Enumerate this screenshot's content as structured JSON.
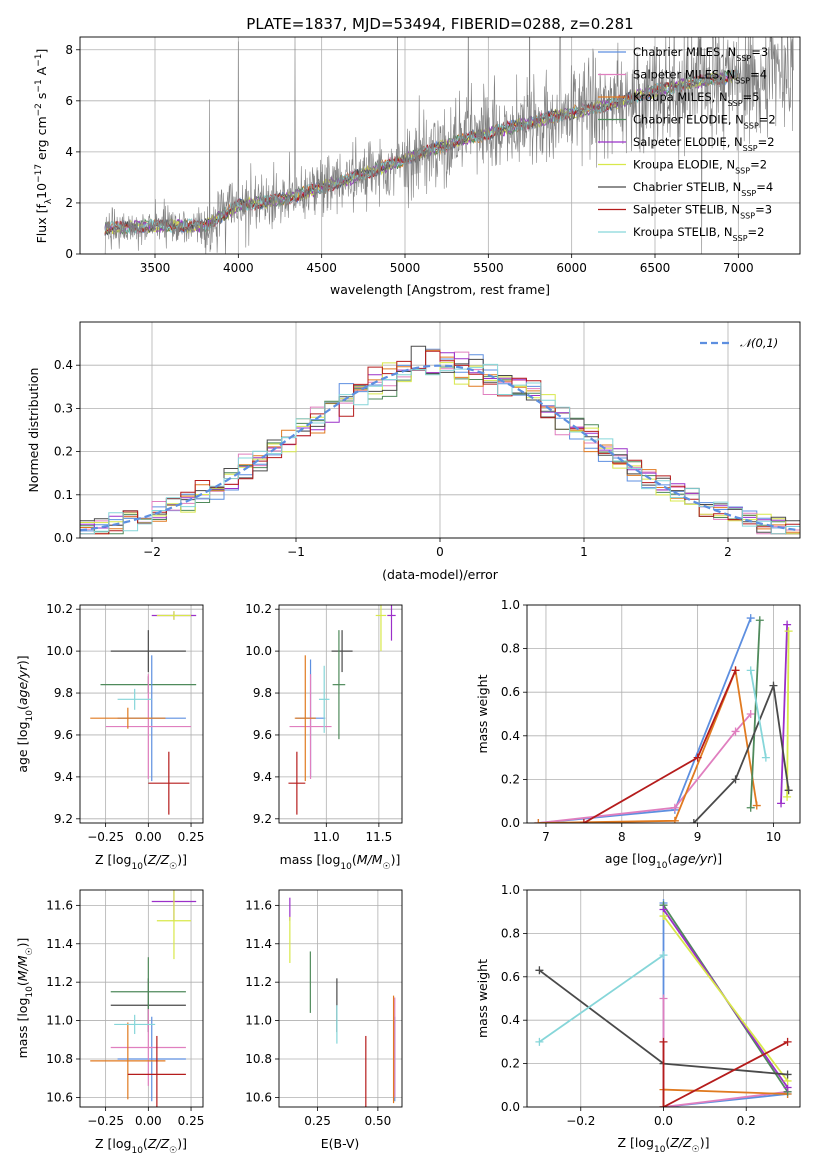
{
  "figure": {
    "title": "PLATE=1837, MJD=53494, FIBERID=0288, z=0.281"
  },
  "legend_models": [
    {
      "name": "Chabrier MILES, N_SSP=3",
      "base": "Chabrier MILES, N",
      "sub": "SSP",
      "tail": "=3",
      "color": "#5d8fe0"
    },
    {
      "name": "Salpeter MILES, N_SSP=4",
      "base": "Salpeter MILES, N",
      "sub": "SSP",
      "tail": "=4",
      "color": "#e07fbf"
    },
    {
      "name": "Kroupa MILES, N_SSP=5",
      "base": "Kroupa MILES, N",
      "sub": "SSP",
      "tail": "=5",
      "color": "#e07a20"
    },
    {
      "name": "Chabrier ELODIE, N_SSP=2",
      "base": "Chabrier ELODIE, N",
      "sub": "SSP",
      "tail": "=2",
      "color": "#4f8a5b"
    },
    {
      "name": "Salpeter ELODIE, N_SSP=2",
      "base": "Salpeter ELODIE, N",
      "sub": "SSP",
      "tail": "=2",
      "color": "#9b30c9"
    },
    {
      "name": "Kroupa ELODIE, N_SSP=2",
      "base": "Kroupa ELODIE, N",
      "sub": "SSP",
      "tail": "=2",
      "color": "#d8e84a"
    },
    {
      "name": "Chabrier STELIB, N_SSP=4",
      "base": "Chabrier STELIB, N",
      "sub": "SSP",
      "tail": "=4",
      "color": "#4a4a4a"
    },
    {
      "name": "Salpeter STELIB, N_SSP=3",
      "base": "Salpeter STELIB, N",
      "sub": "SSP",
      "tail": "=3",
      "color": "#b51c1c"
    },
    {
      "name": "Kroupa STELIB, N_SSP=2",
      "base": "Kroupa STELIB, N",
      "sub": "SSP",
      "tail": "=2",
      "color": "#86d6d9"
    }
  ],
  "chart_data": [
    {
      "id": "spectrum",
      "type": "line",
      "xlabel": "wavelength [Angstrom, rest frame]",
      "ylabel": "Flux [f_λ 10^-17 erg cm^-2 s^-1 A^-1]",
      "xlim": [
        3050,
        7370
      ],
      "ylim": [
        0,
        8.5
      ],
      "xticks": [
        3500,
        4000,
        4500,
        5000,
        5500,
        6000,
        6500,
        7000
      ],
      "yticks": [
        0,
        2,
        4,
        6,
        8
      ],
      "data_color": "#808080",
      "continuum": {
        "x": [
          3200,
          3500,
          3800,
          4000,
          4300,
          4600,
          5000,
          5300,
          5600,
          5900,
          6200,
          6500,
          6800,
          7000,
          7300
        ],
        "y": [
          1.0,
          1.1,
          1.1,
          1.9,
          2.2,
          2.8,
          3.7,
          4.4,
          4.9,
          5.4,
          5.8,
          6.4,
          6.8,
          7.0,
          7.3
        ]
      },
      "legend_position": "upper right"
    },
    {
      "id": "residuals",
      "type": "histogram",
      "xlabel": "(data-model)/error",
      "ylabel": "Normed distribution",
      "xlim": [
        -2.5,
        2.5
      ],
      "ylim": [
        0,
        0.5
      ],
      "xticks": [
        -2,
        -1,
        0,
        1,
        2
      ],
      "yticks": [
        0.0,
        0.1,
        0.2,
        0.3,
        0.4
      ],
      "bin_width": 0.1,
      "reference": {
        "label": "𝒩(0,1)",
        "mean": 0,
        "sigma": 1,
        "color": "#5d8fe0"
      },
      "legend_position": "upper right"
    },
    {
      "id": "age-vs-Z",
      "type": "errorbar",
      "xlabel": "Z [log10(Z/Z☉)]",
      "ylabel": "age [log10(age/yr)]",
      "xlim": [
        -0.4,
        0.32
      ],
      "ylim": [
        9.18,
        10.22
      ],
      "xticks": [
        -0.25,
        0.0,
        0.25
      ],
      "yticks": [
        9.2,
        9.4,
        9.6,
        9.8,
        10.0,
        10.2
      ],
      "points": [
        {
          "x": 0.0,
          "y": 10.0,
          "xerr": 0.22,
          "yerr": 0.1,
          "color": "#4a4a4a"
        },
        {
          "x": 0.0,
          "y": 9.84,
          "xerr": 0.28,
          "yerr": 0.04,
          "color": "#4f8a5b"
        },
        {
          "x": 0.02,
          "y": 9.68,
          "xerr": 0.2,
          "yerr": 0.3,
          "color": "#5d8fe0"
        },
        {
          "x": 0.0,
          "y": 9.64,
          "xerr": 0.25,
          "yerr": 0.25,
          "color": "#e07fbf"
        },
        {
          "x": -0.12,
          "y": 9.68,
          "xerr": 0.22,
          "yerr": 0.05,
          "color": "#e07a20"
        },
        {
          "x": -0.08,
          "y": 9.77,
          "xerr": 0.1,
          "yerr": 0.05,
          "color": "#86d6d9"
        },
        {
          "x": 0.12,
          "y": 9.37,
          "xerr": 0.12,
          "yerr": 0.15,
          "color": "#b51c1c"
        },
        {
          "x": 0.15,
          "y": 10.17,
          "xerr": 0.13,
          "yerr": 0.02,
          "color": "#9b30c9"
        },
        {
          "x": 0.15,
          "y": 10.17,
          "xerr": 0.1,
          "yerr": 0.02,
          "color": "#d8e84a"
        }
      ]
    },
    {
      "id": "age-vs-mass",
      "type": "errorbar",
      "xlabel": "mass [log10(M/M☉)]",
      "ylabel": "",
      "xlim": [
        10.55,
        11.72
      ],
      "ylim": [
        9.18,
        10.22
      ],
      "xticks": [
        11.0,
        11.5
      ],
      "yticks": [
        9.2,
        9.4,
        9.6,
        9.8,
        10.0,
        10.2
      ],
      "points": [
        {
          "x": 11.15,
          "y": 10.0,
          "xerr": 0.1,
          "yerr": 0.1,
          "color": "#4a4a4a"
        },
        {
          "x": 11.12,
          "y": 9.84,
          "xerr": 0.06,
          "yerr": 0.26,
          "color": "#4f8a5b"
        },
        {
          "x": 10.85,
          "y": 9.68,
          "xerr": 0.14,
          "yerr": 0.28,
          "color": "#5d8fe0"
        },
        {
          "x": 10.85,
          "y": 9.64,
          "xerr": 0.2,
          "yerr": 0.25,
          "color": "#e07fbf"
        },
        {
          "x": 10.8,
          "y": 9.68,
          "xerr": 0.1,
          "yerr": 0.3,
          "color": "#e07a20"
        },
        {
          "x": 10.98,
          "y": 9.77,
          "xerr": 0.05,
          "yerr": 0.16,
          "color": "#86d6d9"
        },
        {
          "x": 10.72,
          "y": 9.37,
          "xerr": 0.08,
          "yerr": 0.15,
          "color": "#b51c1c"
        },
        {
          "x": 11.62,
          "y": 10.17,
          "xerr": 0.04,
          "yerr": 0.12,
          "color": "#9b30c9"
        },
        {
          "x": 11.52,
          "y": 10.17,
          "xerr": 0.05,
          "yerr": 0.17,
          "color": "#d8e84a"
        }
      ]
    },
    {
      "id": "weight-vs-age",
      "type": "line",
      "xlabel": "age [log10(age/yr)]",
      "ylabel": "mass weight",
      "xlim": [
        6.75,
        10.35
      ],
      "ylim": [
        0,
        1.0
      ],
      "xticks": [
        7,
        8,
        9,
        10
      ],
      "yticks": [
        0.0,
        0.2,
        0.4,
        0.6,
        0.8,
        1.0
      ],
      "series": [
        {
          "model": "Chabrier MILES",
          "color": "#5d8fe0",
          "x": [
            6.9,
            8.7,
            9.7
          ],
          "y": [
            0.0,
            0.06,
            0.94
          ]
        },
        {
          "model": "Salpeter MILES",
          "color": "#e07fbf",
          "x": [
            6.9,
            8.7,
            9.5,
            9.7
          ],
          "y": [
            0.0,
            0.07,
            0.42,
            0.5
          ]
        },
        {
          "model": "Kroupa MILES",
          "color": "#e07a20",
          "x": [
            6.9,
            8.7,
            9.5,
            9.78
          ],
          "y": [
            0.0,
            0.01,
            0.7,
            0.08
          ]
        },
        {
          "model": "Chabrier ELODIE",
          "color": "#4f8a5b",
          "x": [
            9.7,
            9.82
          ],
          "y": [
            0.07,
            0.93
          ]
        },
        {
          "model": "Salpeter ELODIE",
          "color": "#9b30c9",
          "x": [
            10.1,
            10.18
          ],
          "y": [
            0.09,
            0.91
          ]
        },
        {
          "model": "Kroupa ELODIE",
          "color": "#d8e84a",
          "x": [
            10.18,
            10.2
          ],
          "y": [
            0.12,
            0.88
          ]
        },
        {
          "model": "Chabrier STELIB",
          "color": "#4a4a4a",
          "x": [
            8.95,
            9.5,
            10.0,
            10.2
          ],
          "y": [
            0.0,
            0.2,
            0.63,
            0.15
          ]
        },
        {
          "model": "Salpeter STELIB",
          "color": "#b51c1c",
          "x": [
            7.5,
            9.0,
            9.5
          ],
          "y": [
            0.0,
            0.3,
            0.7
          ]
        },
        {
          "model": "Kroupa STELIB",
          "color": "#86d6d9",
          "x": [
            9.7,
            9.9
          ],
          "y": [
            0.7,
            0.3
          ]
        }
      ]
    },
    {
      "id": "mass-vs-Z",
      "type": "errorbar",
      "xlabel": "Z [log10(Z/Z☉)]",
      "ylabel": "mass [log10(M/M☉)]",
      "xlim": [
        -0.4,
        0.32
      ],
      "ylim": [
        10.55,
        11.68
      ],
      "xticks": [
        -0.25,
        0.0,
        0.25
      ],
      "yticks": [
        10.6,
        10.8,
        11.0,
        11.2,
        11.4,
        11.6
      ],
      "points": [
        {
          "x": 0.0,
          "y": 11.08,
          "xerr": 0.22,
          "yerr": 0.14,
          "color": "#4a4a4a"
        },
        {
          "x": 0.0,
          "y": 11.15,
          "xerr": 0.22,
          "yerr": 0.18,
          "color": "#4f8a5b"
        },
        {
          "x": 0.02,
          "y": 10.8,
          "xerr": 0.2,
          "yerr": 0.22,
          "color": "#5d8fe0"
        },
        {
          "x": 0.0,
          "y": 10.86,
          "xerr": 0.22,
          "yerr": 0.2,
          "color": "#e07fbf"
        },
        {
          "x": -0.12,
          "y": 10.79,
          "xerr": 0.22,
          "yerr": 0.2,
          "color": "#e07a20"
        },
        {
          "x": -0.08,
          "y": 10.98,
          "xerr": 0.12,
          "yerr": 0.05,
          "color": "#86d6d9"
        },
        {
          "x": 0.05,
          "y": 10.72,
          "xerr": 0.17,
          "yerr": 0.2,
          "color": "#b51c1c"
        },
        {
          "x": 0.15,
          "y": 11.62,
          "xerr": 0.13,
          "yerr": 0.1,
          "color": "#9b30c9"
        },
        {
          "x": 0.15,
          "y": 11.52,
          "xerr": 0.1,
          "yerr": 0.2,
          "color": "#d8e84a"
        }
      ]
    },
    {
      "id": "mass-vs-EBV",
      "type": "errorbar",
      "xlabel": "E(B-V)",
      "ylabel": "",
      "xlim": [
        0.09,
        0.6
      ],
      "ylim": [
        10.55,
        11.68
      ],
      "xticks": [
        0.25,
        0.5
      ],
      "yticks": [
        10.6,
        10.8,
        11.0,
        11.2,
        11.4,
        11.6
      ],
      "points": [
        {
          "x": 0.33,
          "y": 11.08,
          "xerr": 0,
          "yerr": 0.14,
          "color": "#4a4a4a"
        },
        {
          "x": 0.22,
          "y": 11.2,
          "xerr": 0,
          "yerr": 0.16,
          "color": "#4f8a5b"
        },
        {
          "x": 0.57,
          "y": 10.8,
          "xerr": 0,
          "yerr": 0.22,
          "color": "#5d8fe0"
        },
        {
          "x": 0.57,
          "y": 10.86,
          "xerr": 0,
          "yerr": 0.26,
          "color": "#e07fbf"
        },
        {
          "x": 0.565,
          "y": 10.85,
          "xerr": 0,
          "yerr": 0.28,
          "color": "#e07a20"
        },
        {
          "x": 0.33,
          "y": 10.98,
          "xerr": 0,
          "yerr": 0.1,
          "color": "#86d6d9"
        },
        {
          "x": 0.45,
          "y": 10.72,
          "xerr": 0,
          "yerr": 0.2,
          "color": "#b51c1c"
        },
        {
          "x": 0.135,
          "y": 11.58,
          "xerr": 0,
          "yerr": 0.06,
          "color": "#9b30c9"
        },
        {
          "x": 0.135,
          "y": 11.42,
          "xerr": 0,
          "yerr": 0.12,
          "color": "#d8e84a"
        }
      ]
    },
    {
      "id": "weight-vs-Z",
      "type": "line",
      "xlabel": "Z [log10(Z/Z☉)]",
      "ylabel": "mass weight",
      "xlim": [
        -0.33,
        0.33
      ],
      "ylim": [
        0,
        1.0
      ],
      "xticks": [
        -0.2,
        0.0,
        0.2
      ],
      "yticks": [
        0.0,
        0.2,
        0.4,
        0.6,
        0.8,
        1.0
      ],
      "series": [
        {
          "model": "Chabrier MILES",
          "color": "#5d8fe0",
          "x": [
            0.0,
            0.0,
            0.3
          ],
          "y": [
            0.94,
            0.0,
            0.06
          ]
        },
        {
          "model": "Salpeter MILES",
          "color": "#e07fbf",
          "x": [
            0.0,
            0.0,
            0.3
          ],
          "y": [
            0.5,
            0.0,
            0.07
          ]
        },
        {
          "model": "Kroupa MILES",
          "color": "#e07a20",
          "x": [
            0.0,
            0.0,
            0.3
          ],
          "y": [
            0.0,
            0.08,
            0.06
          ]
        },
        {
          "model": "Chabrier ELODIE",
          "color": "#4f8a5b",
          "x": [
            0.0,
            0.3
          ],
          "y": [
            0.93,
            0.07
          ]
        },
        {
          "model": "Salpeter ELODIE",
          "color": "#9b30c9",
          "x": [
            0.0,
            0.3
          ],
          "y": [
            0.91,
            0.09
          ]
        },
        {
          "model": "Kroupa ELODIE",
          "color": "#d8e84a",
          "x": [
            0.0,
            0.3
          ],
          "y": [
            0.88,
            0.12
          ]
        },
        {
          "model": "Chabrier STELIB",
          "color": "#4a4a4a",
          "x": [
            -0.3,
            0.0,
            0.3
          ],
          "y": [
            0.63,
            0.2,
            0.15
          ]
        },
        {
          "model": "Salpeter STELIB",
          "color": "#b51c1c",
          "x": [
            0.0,
            0.0,
            0.3
          ],
          "y": [
            0.3,
            0.0,
            0.3
          ]
        },
        {
          "model": "Kroupa STELIB",
          "color": "#86d6d9",
          "x": [
            -0.3,
            0.0
          ],
          "y": [
            0.3,
            0.7
          ]
        }
      ]
    }
  ]
}
